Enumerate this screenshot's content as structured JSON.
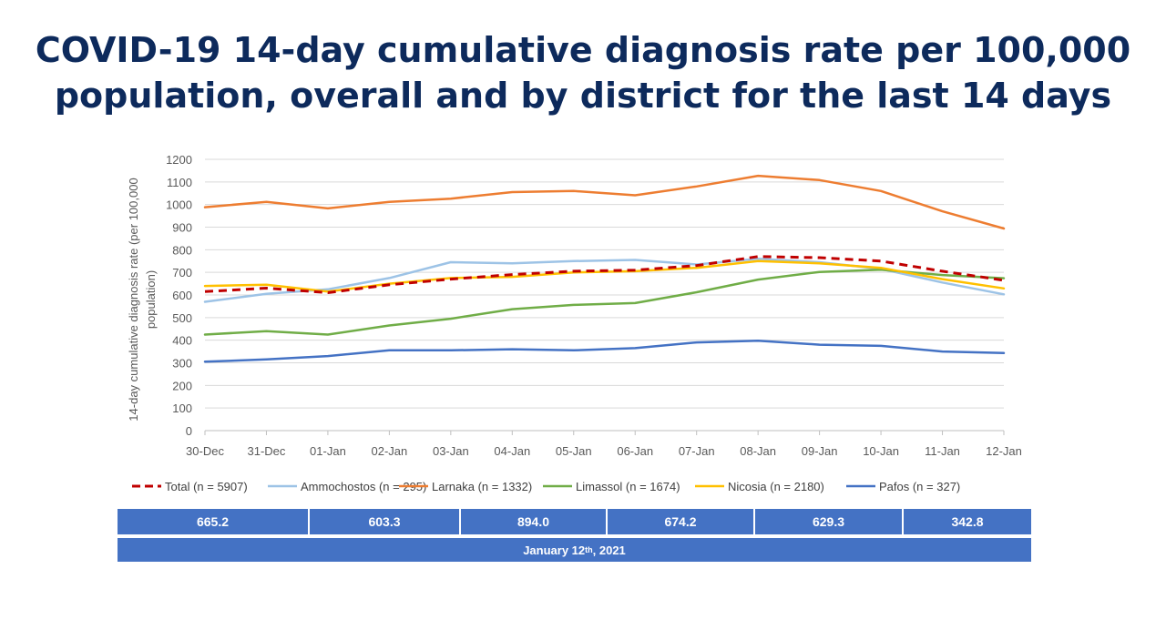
{
  "title": {
    "line1": "COVID-19 14-day cumulative diagnosis rate per 100,000",
    "line2": "population, overall and by district for the last 14 days"
  },
  "chart_data": {
    "type": "line",
    "ylabel_line1": "14-day cumulative diagnosis rate (per 100,000",
    "ylabel_line2": "population)",
    "ylim": [
      0,
      1200
    ],
    "yticks": [
      0,
      100,
      200,
      300,
      400,
      500,
      600,
      700,
      800,
      900,
      1000,
      1100,
      1200
    ],
    "grid": true,
    "legend": "bottom",
    "categories": [
      "30-Dec",
      "31-Dec",
      "01-Jan",
      "02-Jan",
      "03-Jan",
      "04-Jan",
      "05-Jan",
      "06-Jan",
      "07-Jan",
      "08-Jan",
      "09-Jan",
      "10-Jan",
      "11-Jan",
      "12-Jan"
    ],
    "series": [
      {
        "name": "Total (n = 5907)",
        "color": "#c00000",
        "dashed": true,
        "values": [
          615,
          630,
          610,
          645,
          670,
          690,
          705,
          710,
          730,
          770,
          765,
          750,
          705,
          665
        ]
      },
      {
        "name": "Ammochostos (n = 295)",
        "color": "#9dc3e6",
        "dashed": false,
        "values": [
          570,
          605,
          625,
          675,
          745,
          740,
          750,
          755,
          735,
          760,
          745,
          715,
          655,
          603
        ]
      },
      {
        "name": "Larnaka (n = 1332)",
        "color": "#ed7d31",
        "dashed": false,
        "values": [
          988,
          1012,
          983,
          1012,
          1026,
          1055,
          1060,
          1041,
          1080,
          1127,
          1108,
          1060,
          970,
          894
        ]
      },
      {
        "name": "Limassol (n = 1674)",
        "color": "#70ad47",
        "dashed": false,
        "values": [
          425,
          440,
          425,
          465,
          495,
          537,
          556,
          564,
          612,
          668,
          702,
          712,
          688,
          674
        ]
      },
      {
        "name": "Nicosia (n = 2180)",
        "color": "#ffc000",
        "dashed": false,
        "values": [
          640,
          645,
          615,
          650,
          675,
          680,
          700,
          705,
          720,
          750,
          740,
          720,
          670,
          629
        ]
      },
      {
        "name": "Pafos (n = 327)",
        "color": "#4472c4",
        "dashed": false,
        "values": [
          305,
          315,
          330,
          355,
          355,
          360,
          355,
          365,
          390,
          398,
          380,
          375,
          350,
          343
        ]
      }
    ]
  },
  "table": {
    "values": [
      "665.2",
      "603.3",
      "894.0",
      "674.2",
      "629.3",
      "342.8"
    ],
    "date_prefix": "January 12",
    "date_sup": "th",
    "date_suffix": ", 2021"
  }
}
